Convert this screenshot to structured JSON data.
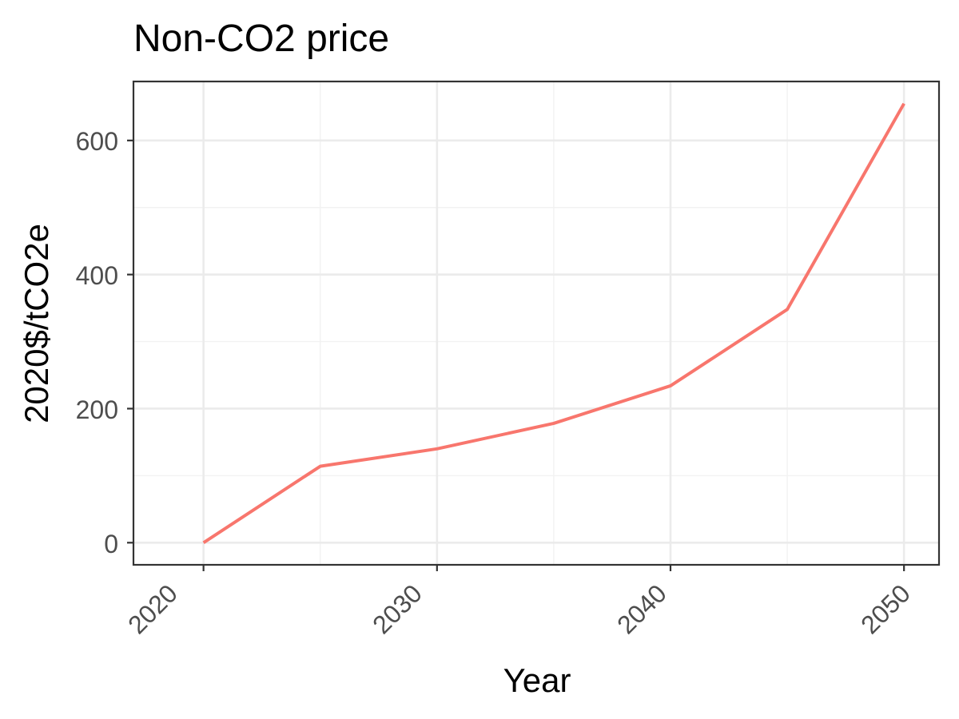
{
  "chart_data": {
    "type": "line",
    "title": "Non-CO2 price",
    "xlabel": "Year",
    "ylabel": "2020$/tCO2e",
    "x": [
      2020,
      2025,
      2030,
      2035,
      2040,
      2045,
      2050
    ],
    "series": [
      {
        "values": [
          0,
          114,
          140,
          178,
          234,
          348,
          655
        ],
        "color": "#F8766D"
      }
    ],
    "xlim": [
      2017,
      2051.5
    ],
    "ylim": [
      -33,
      688
    ],
    "x_ticks": [
      "2020",
      "2030",
      "2040",
      "2050"
    ],
    "y_ticks": [
      "0",
      "200",
      "400",
      "600"
    ],
    "grid": true,
    "legend": "none"
  }
}
